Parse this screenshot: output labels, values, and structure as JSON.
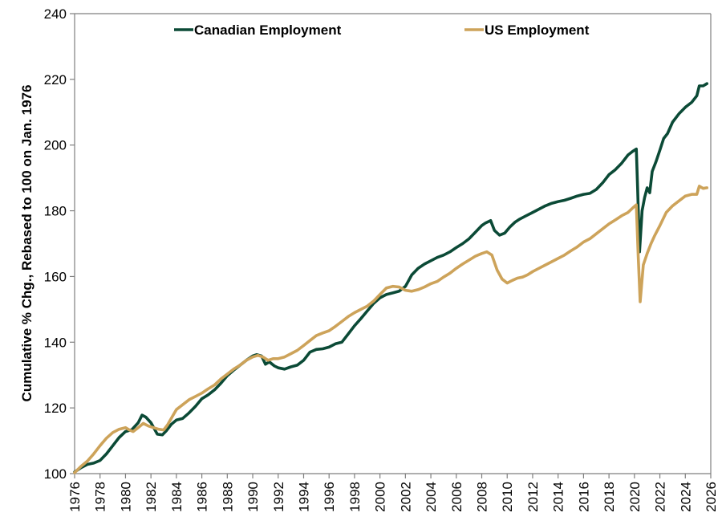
{
  "chart_data": {
    "type": "line",
    "title": "",
    "xlabel": "",
    "ylabel": "Cumulative % Chg., Rebased to 100 on Jan. 1976",
    "xlim": [
      1976,
      2026
    ],
    "ylim": [
      100,
      240
    ],
    "grid": false,
    "legend_position": "top-center",
    "x_ticks": [
      "1976",
      "1978",
      "1980",
      "1982",
      "1984",
      "1986",
      "1988",
      "1990",
      "1992",
      "1994",
      "1996",
      "1998",
      "2000",
      "2002",
      "2004",
      "2006",
      "2008",
      "2010",
      "2012",
      "2014",
      "2016",
      "2018",
      "2020",
      "2022",
      "2024",
      "2026"
    ],
    "y_ticks": [
      "100",
      "120",
      "140",
      "160",
      "180",
      "200",
      "220",
      "240"
    ],
    "series": [
      {
        "name": "Canadian Employment",
        "color": "#0b4a36",
        "x": [
          1976.0,
          1976.5,
          1977.0,
          1977.5,
          1978.0,
          1978.5,
          1979.0,
          1979.5,
          1980.0,
          1980.5,
          1981.0,
          1981.3,
          1981.6,
          1982.0,
          1982.5,
          1982.9,
          1983.2,
          1983.6,
          1984.0,
          1984.5,
          1985.0,
          1985.5,
          1986.0,
          1986.5,
          1987.0,
          1987.5,
          1988.0,
          1988.5,
          1989.0,
          1989.5,
          1990.0,
          1990.3,
          1990.7,
          1991.0,
          1991.3,
          1991.7,
          1992.0,
          1992.5,
          1993.0,
          1993.5,
          1994.0,
          1994.5,
          1995.0,
          1995.5,
          1996.0,
          1996.5,
          1997.0,
          1997.5,
          1998.0,
          1998.5,
          1999.0,
          1999.5,
          2000.0,
          2000.5,
          2001.0,
          2001.5,
          2002.0,
          2002.5,
          2003.0,
          2003.5,
          2004.0,
          2004.5,
          2005.0,
          2005.5,
          2006.0,
          2006.5,
          2007.0,
          2007.5,
          2008.0,
          2008.3,
          2008.7,
          2009.0,
          2009.4,
          2009.8,
          2010.2,
          2010.6,
          2011.0,
          2011.5,
          2012.0,
          2012.5,
          2013.0,
          2013.5,
          2014.0,
          2014.5,
          2015.0,
          2015.5,
          2016.0,
          2016.5,
          2017.0,
          2017.5,
          2018.0,
          2018.5,
          2019.0,
          2019.5,
          2019.9,
          2020.15,
          2020.25,
          2020.4,
          2020.6,
          2020.8,
          2021.0,
          2021.2,
          2021.4,
          2021.7,
          2022.0,
          2022.3,
          2022.6,
          2023.0,
          2023.5,
          2024.0,
          2024.5,
          2024.9,
          2025.1,
          2025.4,
          2025.7
        ],
        "values": [
          100.5,
          101.8,
          102.8,
          103.2,
          104.0,
          106.0,
          108.5,
          111.0,
          112.8,
          113.4,
          115.5,
          117.8,
          117.2,
          115.5,
          112.0,
          111.8,
          113.0,
          115.0,
          116.3,
          116.8,
          118.5,
          120.5,
          122.8,
          124.0,
          125.5,
          127.5,
          129.8,
          131.5,
          133.0,
          134.5,
          135.8,
          136.2,
          135.8,
          133.3,
          134.0,
          132.8,
          132.2,
          131.8,
          132.5,
          133.0,
          134.5,
          137.0,
          137.8,
          138.0,
          138.5,
          139.5,
          140.0,
          142.5,
          145.0,
          147.2,
          149.5,
          151.8,
          153.5,
          154.5,
          155.0,
          155.5,
          157.0,
          160.5,
          162.5,
          163.8,
          164.8,
          165.8,
          166.5,
          167.5,
          168.8,
          170.0,
          171.5,
          173.5,
          175.5,
          176.3,
          177.0,
          174.0,
          172.6,
          173.2,
          175.0,
          176.5,
          177.5,
          178.5,
          179.5,
          180.5,
          181.5,
          182.3,
          182.8,
          183.2,
          183.8,
          184.5,
          185.0,
          185.3,
          186.5,
          188.5,
          191.0,
          192.5,
          194.5,
          197.0,
          198.2,
          198.8,
          187.0,
          167.5,
          180.0,
          184.0,
          187.0,
          185.5,
          192.0,
          195.0,
          198.5,
          202.0,
          203.5,
          207.0,
          209.5,
          211.5,
          213.0,
          215.0,
          218.0,
          218.0,
          218.7
        ]
      },
      {
        "name": "US Employment",
        "color": "#cda35a",
        "x": [
          1976.0,
          1976.5,
          1977.0,
          1977.5,
          1978.0,
          1978.5,
          1979.0,
          1979.5,
          1980.0,
          1980.3,
          1980.6,
          1981.0,
          1981.4,
          1981.8,
          1982.2,
          1982.6,
          1983.0,
          1983.3,
          1983.7,
          1984.0,
          1984.5,
          1985.0,
          1985.5,
          1986.0,
          1986.5,
          1987.0,
          1987.5,
          1988.0,
          1988.5,
          1989.0,
          1989.5,
          1990.0,
          1990.4,
          1990.8,
          1991.2,
          1991.6,
          1992.0,
          1992.5,
          1993.0,
          1993.5,
          1994.0,
          1994.5,
          1995.0,
          1995.5,
          1996.0,
          1996.5,
          1997.0,
          1997.5,
          1998.0,
          1998.5,
          1999.0,
          1999.5,
          2000.0,
          2000.5,
          2001.0,
          2001.5,
          2002.0,
          2002.5,
          2003.0,
          2003.5,
          2004.0,
          2004.5,
          2005.0,
          2005.5,
          2006.0,
          2006.5,
          2007.0,
          2007.5,
          2008.0,
          2008.4,
          2008.8,
          2009.2,
          2009.6,
          2010.0,
          2010.4,
          2010.8,
          2011.2,
          2011.6,
          2012.0,
          2012.5,
          2013.0,
          2013.5,
          2014.0,
          2014.5,
          2015.0,
          2015.5,
          2016.0,
          2016.5,
          2017.0,
          2017.5,
          2018.0,
          2018.5,
          2019.0,
          2019.5,
          2019.9,
          2020.15,
          2020.3,
          2020.45,
          2020.7,
          2021.0,
          2021.3,
          2021.6,
          2022.0,
          2022.5,
          2023.0,
          2023.5,
          2024.0,
          2024.5,
          2024.9,
          2025.1,
          2025.4,
          2025.7
        ],
        "values": [
          100.3,
          102.2,
          103.8,
          106.0,
          108.5,
          110.8,
          112.5,
          113.5,
          114.0,
          113.3,
          112.8,
          114.0,
          115.3,
          114.5,
          114.0,
          113.5,
          113.3,
          114.8,
          117.5,
          119.5,
          121.0,
          122.5,
          123.5,
          124.5,
          125.8,
          127.0,
          128.8,
          130.3,
          131.8,
          133.0,
          134.5,
          135.5,
          136.0,
          135.5,
          134.5,
          135.0,
          135.0,
          135.5,
          136.5,
          137.5,
          139.0,
          140.5,
          142.0,
          142.8,
          143.5,
          144.8,
          146.3,
          147.8,
          149.0,
          150.0,
          151.0,
          152.5,
          154.5,
          156.5,
          157.0,
          156.8,
          155.8,
          155.5,
          156.0,
          156.8,
          157.8,
          158.5,
          159.8,
          161.0,
          162.5,
          163.8,
          165.0,
          166.2,
          167.0,
          167.5,
          166.5,
          162.0,
          159.2,
          158.0,
          158.8,
          159.5,
          159.8,
          160.5,
          161.5,
          162.5,
          163.5,
          164.5,
          165.5,
          166.5,
          167.8,
          169.0,
          170.5,
          171.5,
          173.0,
          174.5,
          176.0,
          177.2,
          178.5,
          179.5,
          181.0,
          181.8,
          166.0,
          152.3,
          163.5,
          167.0,
          170.0,
          172.5,
          175.5,
          179.5,
          181.5,
          183.0,
          184.5,
          185.0,
          185.0,
          187.5,
          186.8,
          187.0
        ]
      }
    ]
  }
}
